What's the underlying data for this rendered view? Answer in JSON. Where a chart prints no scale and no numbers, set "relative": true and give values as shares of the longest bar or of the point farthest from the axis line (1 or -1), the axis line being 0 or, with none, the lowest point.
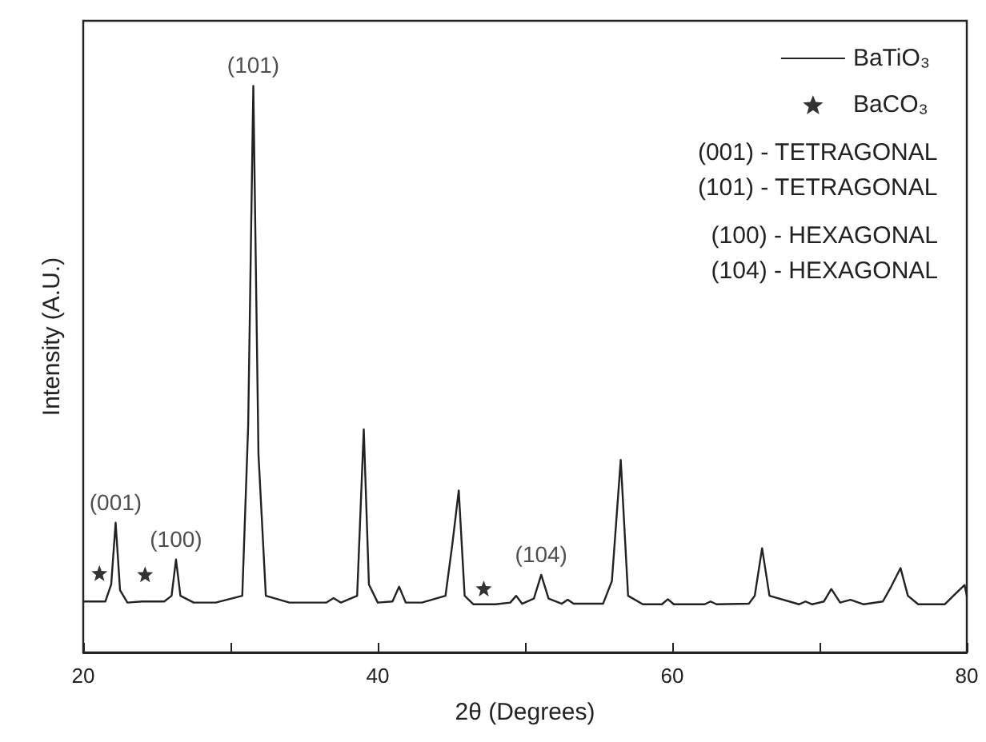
{
  "chart_data": {
    "type": "line",
    "relative": true,
    "xlabel": "2θ (Degrees)",
    "ylabel": "Intensity (A.U.)",
    "xlim": [
      20,
      80
    ],
    "xticks": [
      20,
      {
        "value": 30,
        "label": null
      },
      40,
      {
        "value": 50,
        "label": null
      },
      60,
      {
        "value": 70,
        "label": null
      },
      80
    ],
    "tick_labels": "x",
    "grid": false,
    "legend": "top right",
    "series": [
      {
        "name": "BaTiO₃",
        "color": "#222222",
        "marker": "none",
        "x": [
          20,
          21.5,
          21.9,
          22.2,
          22.5,
          23,
          24,
          25.5,
          26,
          26.3,
          26.6,
          27.5,
          29,
          30.8,
          31.2,
          31.55,
          31.9,
          32.4,
          34,
          36.5,
          37,
          37.5,
          38.6,
          39.05,
          39.4,
          40,
          41,
          41.45,
          41.9,
          43,
          44.6,
          45.07,
          45.5,
          45.9,
          46.5,
          48,
          49,
          49.4,
          49.8,
          50.6,
          51.1,
          51.6,
          52.5,
          52.9,
          53.3,
          55.3,
          55.9,
          56.5,
          57,
          58,
          59.3,
          59.7,
          60.1,
          62.2,
          62.6,
          63,
          65.2,
          65.6,
          66.1,
          66.6,
          68.6,
          69.05,
          69.5,
          70.3,
          70.8,
          71.4,
          72.1,
          73,
          74.3,
          74.86,
          75.5,
          76,
          76.7,
          78.5,
          79.2,
          79.85,
          80
        ],
        "values": [
          0.09,
          0.09,
          0.12,
          0.229,
          0.11,
          0.088,
          0.09,
          0.09,
          0.1,
          0.164,
          0.1,
          0.088,
          0.088,
          0.1,
          0.4,
          1,
          0.35,
          0.1,
          0.088,
          0.088,
          0.096,
          0.088,
          0.1,
          0.394,
          0.12,
          0.088,
          0.09,
          0.116,
          0.088,
          0.088,
          0.1,
          0.192,
          0.286,
          0.1,
          0.085,
          0.085,
          0.088,
          0.1,
          0.086,
          0.095,
          0.137,
          0.095,
          0.086,
          0.093,
          0.086,
          0.086,
          0.126,
          0.34,
          0.1,
          0.085,
          0.085,
          0.094,
          0.085,
          0.085,
          0.09,
          0.085,
          0.086,
          0.1,
          0.184,
          0.1,
          0.085,
          0.09,
          0.085,
          0.09,
          0.112,
          0.088,
          0.093,
          0.085,
          0.09,
          0.116,
          0.149,
          0.1,
          0.085,
          0.085,
          0.103,
          0.119,
          0.1
        ]
      },
      {
        "name": "BaCO₃",
        "type": "scatter",
        "color": "#000000",
        "marker": "star",
        "x": [
          21.1,
          24.2,
          47.2
        ],
        "values": [
          0.14,
          0.138,
          0.113
        ]
      }
    ],
    "annotations": [
      {
        "text": "(001)",
        "x": 22.2,
        "y": 0.229
      },
      {
        "text": "(100)",
        "x": 26.3,
        "y": 0.164
      },
      {
        "text": "(101)",
        "x": 31.55,
        "y": 1
      },
      {
        "text": "(104)",
        "x": 51.1,
        "y": 0.137
      },
      "(001) - TETRAGONAL",
      "(101) - TETRAGONAL",
      "(100) - HEXAGONAL",
      "(104) - HEXAGONAL"
    ]
  }
}
